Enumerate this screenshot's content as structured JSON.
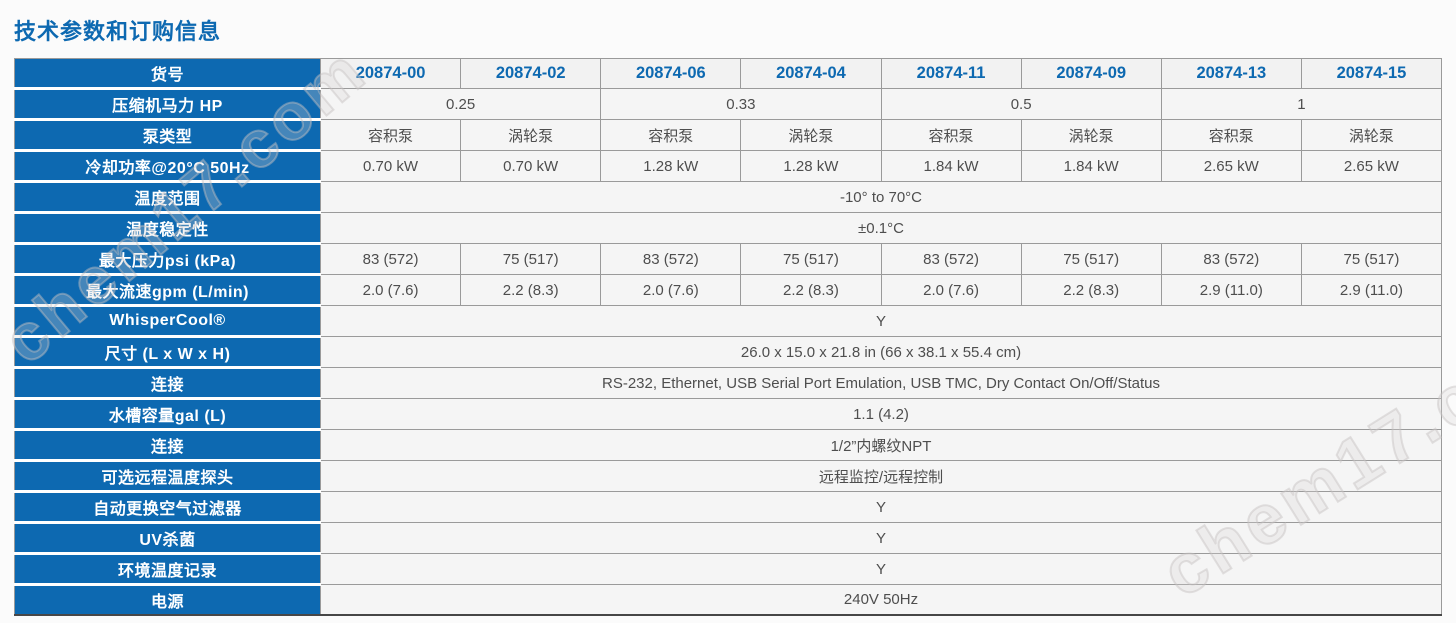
{
  "page": {
    "title": "技术参数和订购信息",
    "watermark": "chem17.com"
  },
  "colors": {
    "accent_blue": "#0d69b1",
    "label_text": "#ffffff",
    "data_text": "#4e4e4e",
    "data_bg": "#f5f5f5",
    "grid_line": "#9a9a9a"
  },
  "table": {
    "item_no_label": "货号",
    "models": [
      "20874-00",
      "20874-02",
      "20874-06",
      "20874-04",
      "20874-11",
      "20874-09",
      "20874-13",
      "20874-15"
    ],
    "rows": [
      {
        "label": "压缩机马力 HP",
        "cells": [
          {
            "text": "0.25",
            "span": 2
          },
          {
            "text": "0.33",
            "span": 2
          },
          {
            "text": "0.5",
            "span": 2
          },
          {
            "text": "1",
            "span": 2
          }
        ]
      },
      {
        "label": "泵类型",
        "cells": [
          {
            "text": "容积泵"
          },
          {
            "text": "涡轮泵"
          },
          {
            "text": "容积泵"
          },
          {
            "text": "涡轮泵"
          },
          {
            "text": "容积泵"
          },
          {
            "text": "涡轮泵"
          },
          {
            "text": "容积泵"
          },
          {
            "text": "涡轮泵"
          }
        ]
      },
      {
        "label": "冷却功率@20°C 50Hz",
        "cells": [
          {
            "text": "0.70 kW"
          },
          {
            "text": "0.70 kW"
          },
          {
            "text": "1.28 kW"
          },
          {
            "text": "1.28 kW"
          },
          {
            "text": "1.84 kW"
          },
          {
            "text": "1.84 kW"
          },
          {
            "text": "2.65 kW"
          },
          {
            "text": "2.65 kW"
          }
        ]
      },
      {
        "label": "温度范围",
        "cells": [
          {
            "text": "-10° to 70°C",
            "span": 8
          }
        ]
      },
      {
        "label": "温度稳定性",
        "cells": [
          {
            "text": "±0.1°C",
            "span": 8
          }
        ]
      },
      {
        "label": "最大压力psi (kPa)",
        "cells": [
          {
            "text": "83 (572)"
          },
          {
            "text": "75 (517)"
          },
          {
            "text": "83 (572)"
          },
          {
            "text": "75 (517)"
          },
          {
            "text": "83 (572)"
          },
          {
            "text": "75 (517)"
          },
          {
            "text": "83 (572)"
          },
          {
            "text": "75 (517)"
          }
        ]
      },
      {
        "label": "最大流速gpm (L/min)",
        "cells": [
          {
            "text": "2.0 (7.6)"
          },
          {
            "text": "2.2 (8.3)"
          },
          {
            "text": "2.0 (7.6)"
          },
          {
            "text": "2.2 (8.3)"
          },
          {
            "text": "2.0 (7.6)"
          },
          {
            "text": "2.2 (8.3)"
          },
          {
            "text": "2.9 (11.0)"
          },
          {
            "text": "2.9 (11.0)"
          }
        ]
      },
      {
        "label": "WhisperCool®",
        "cells": [
          {
            "text": "Y",
            "span": 8
          }
        ]
      },
      {
        "label": "尺寸 (L x W x H)",
        "cells": [
          {
            "text": "26.0 x 15.0 x 21.8 in (66 x 38.1 x 55.4 cm)",
            "span": 8
          }
        ]
      },
      {
        "label": "连接",
        "cells": [
          {
            "text": "RS-232, Ethernet, USB Serial Port Emulation, USB TMC, Dry Contact On/Off/Status",
            "span": 8
          }
        ]
      },
      {
        "label": "水槽容量gal (L)",
        "cells": [
          {
            "text": "1.1 (4.2)",
            "span": 8
          }
        ]
      },
      {
        "label": "连接",
        "cells": [
          {
            "text": "1/2”内螺纹NPT",
            "span": 8
          }
        ]
      },
      {
        "label": "可选远程温度探头",
        "cells": [
          {
            "text": "远程监控/远程控制",
            "span": 8
          }
        ]
      },
      {
        "label": "自动更换空气过滤器",
        "cells": [
          {
            "text": "Y",
            "span": 8
          }
        ]
      },
      {
        "label": "UV杀菌",
        "cells": [
          {
            "text": "Y",
            "span": 8
          }
        ]
      },
      {
        "label": "环境温度记录",
        "cells": [
          {
            "text": "Y",
            "span": 8
          }
        ]
      },
      {
        "label": "电源",
        "cells": [
          {
            "text": "240V 50Hz",
            "span": 8
          }
        ]
      }
    ]
  }
}
